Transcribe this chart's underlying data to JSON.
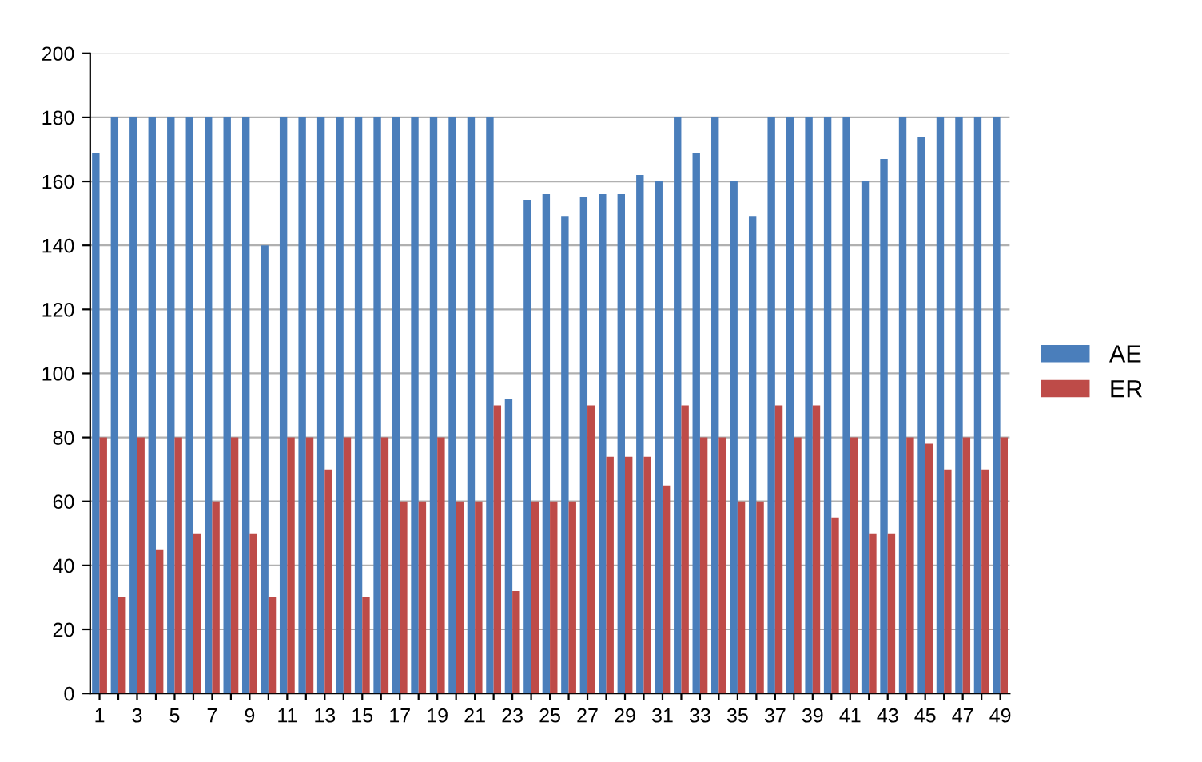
{
  "chart_data": {
    "type": "bar",
    "categories": [
      "1",
      null,
      "3",
      null,
      "5",
      null,
      "7",
      null,
      "9",
      null,
      "11",
      null,
      "13",
      null,
      "15",
      null,
      "17",
      null,
      "19",
      null,
      "21",
      null,
      "23",
      null,
      "25",
      null,
      "27",
      null,
      "29",
      null,
      "31",
      null,
      "33",
      null,
      "35",
      null,
      "37",
      null,
      "39",
      null,
      "41",
      null,
      "43",
      null,
      "45",
      null,
      "47",
      null,
      "49"
    ],
    "series": [
      {
        "name": "AE",
        "color": "#4a7ebb",
        "values": [
          169,
          180,
          180,
          180,
          180,
          180,
          180,
          180,
          180,
          140,
          180,
          180,
          180,
          180,
          180,
          180,
          180,
          180,
          180,
          180,
          180,
          180,
          92,
          154,
          156,
          149,
          155,
          156,
          156,
          162,
          160,
          180,
          169,
          180,
          160,
          149,
          180,
          180,
          180,
          180,
          180,
          160,
          167,
          180,
          174,
          180,
          180,
          180,
          180
        ]
      },
      {
        "name": "ER",
        "color": "#be4b48",
        "values": [
          80,
          30,
          80,
          45,
          80,
          50,
          60,
          80,
          50,
          30,
          80,
          80,
          70,
          80,
          30,
          80,
          60,
          60,
          80,
          60,
          60,
          90,
          32,
          60,
          60,
          60,
          90,
          74,
          74,
          74,
          65,
          90,
          80,
          80,
          60,
          60,
          90,
          80,
          90,
          55,
          80,
          50,
          50,
          80,
          78,
          70,
          80,
          70,
          80
        ]
      }
    ],
    "ylim": [
      0,
      200
    ],
    "yticks": [
      0,
      20,
      40,
      60,
      80,
      100,
      120,
      140,
      160,
      180,
      200
    ],
    "grid": "y",
    "legend": "right"
  }
}
